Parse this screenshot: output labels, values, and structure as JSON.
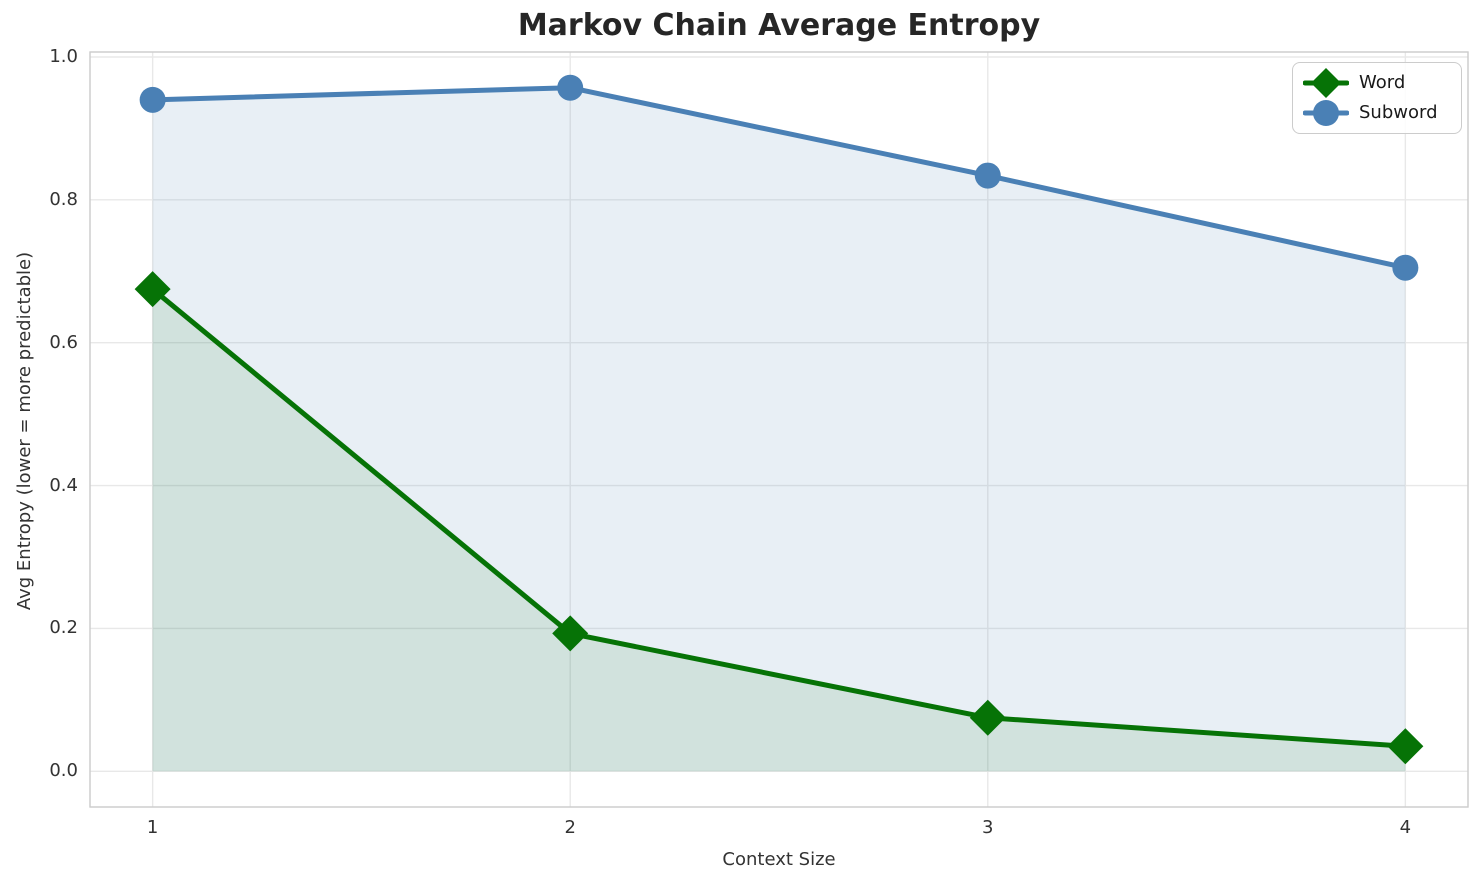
{
  "chart_data": {
    "type": "line",
    "title": "Markov Chain Average Entropy",
    "xlabel": "Context Size",
    "ylabel": "Avg Entropy (lower = more predictable)",
    "x": [
      1,
      2,
      3,
      4
    ],
    "series": [
      {
        "name": "Word",
        "values": [
          0.675,
          0.193,
          0.075,
          0.035
        ],
        "color": "#067306",
        "fill_color": "rgba(6, 115, 6, 0.10)",
        "marker": "diamond",
        "line_width": 5
      },
      {
        "name": "Subword",
        "values": [
          0.94,
          0.957,
          0.834,
          0.705
        ],
        "color": "#4a80b5",
        "fill_color": "rgba(74, 128, 181, 0.13)",
        "marker": "circle",
        "line_width": 5
      }
    ],
    "xticks": [
      1,
      2,
      3,
      4
    ],
    "xtick_labels": [
      "1",
      "2",
      "3",
      "4"
    ],
    "yticks": [
      0.0,
      0.2,
      0.4,
      0.6,
      0.8,
      1.0
    ],
    "ytick_labels": [
      "0.0",
      "0.2",
      "0.4",
      "0.6",
      "0.8",
      "1.0"
    ],
    "xlim": [
      0.85,
      4.15
    ],
    "ylim": [
      -0.05,
      1.007
    ],
    "grid": true,
    "legend_position": "upper right",
    "colors": {
      "grid": "#e8e8e8",
      "spine": "#cbcbcb",
      "title": "#262626",
      "tick": "#333333",
      "label": "#333333"
    }
  }
}
